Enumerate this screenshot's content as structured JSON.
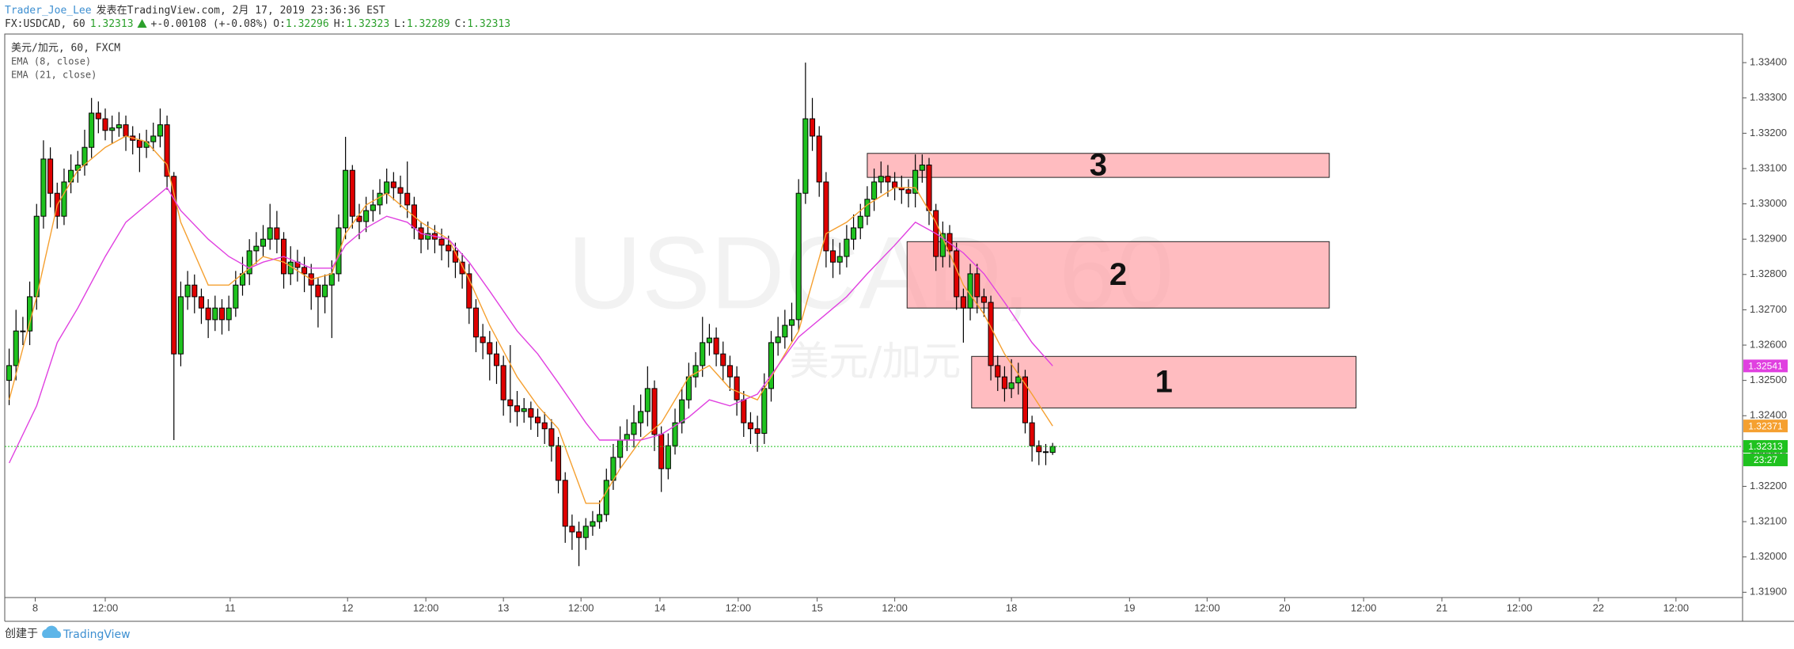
{
  "header": {
    "author": "Trader_Joe_Lee",
    "published": "发表在TradingView.com, 2月 17, 2019 23:36:36 EST",
    "symbol": "FX:USDCAD, 60",
    "change": "+-0.00108 (+-0.08%)",
    "ohlc_labels": [
      "O:",
      "H:",
      "L:",
      "C:"
    ]
  },
  "chart_data": {
    "type": "candlestick",
    "title": "美元/加元, 60, FXCM",
    "watermark": "USDCAD, 60",
    "watermark_sub": "美元/加元",
    "up_color": "#1fc21f",
    "down_color": "#e00000",
    "open": [
      1.325,
      1.32542,
      1.3264,
      1.3264,
      1.32737,
      1.32965,
      1.33127,
      1.3303,
      1.32965,
      1.33062,
      1.33095,
      1.3311,
      1.3316,
      1.33257,
      1.33241,
      1.33208,
      1.33215,
      1.33224,
      1.33192,
      1.3318,
      1.3316,
      1.33176,
      1.33192,
      1.33224,
      1.33078,
      1.32575,
      1.32737,
      1.3277,
      1.32737,
      1.32705,
      1.32672,
      1.32705,
      1.32672,
      1.32705,
      1.3277,
      1.32802,
      1.32867,
      1.3288,
      1.329,
      1.32932,
      1.329,
      1.32802,
      1.32835,
      1.3282,
      1.32802,
      1.3277,
      1.32737,
      1.3277,
      1.32802,
      1.32932,
      1.33095,
      1.32965,
      1.3295,
      1.32981,
      1.32997,
      1.3303,
      1.33062,
      1.33046,
      1.3303,
      1.32997,
      1.32932,
      1.329,
      1.32916,
      1.329,
      1.32883,
      1.32867,
      1.32835,
      1.32802,
      1.32705,
      1.32623,
      1.32607,
      1.32575,
      1.32542,
      1.32445,
      1.32428,
      1.32412,
      1.3242,
      1.32396,
      1.3238,
      1.32363,
      1.32315,
      1.32217,
      1.32087,
      1.32071,
      1.32055,
      1.32087,
      1.321,
      1.3212,
      1.32217,
      1.32282,
      1.32331,
      1.32347,
      1.3238,
      1.32412,
      1.32477,
      1.32347,
      1.3225,
      1.32315,
      1.3238,
      1.32445,
      1.3251,
      1.32542,
      1.32607,
      1.3262,
      1.32575,
      1.32542,
      1.3251,
      1.32445,
      1.3238,
      1.32363,
      1.3235,
      1.32477,
      1.32607,
      1.32623,
      1.32656,
      1.32672,
      1.3303,
      1.33241,
      1.33192,
      1.33062,
      1.32867,
      1.32835,
      1.32851,
      1.329,
      1.32932,
      1.32965,
      1.33013,
      1.33062,
      1.33078,
      1.33062,
      1.33046,
      1.3304,
      1.3303,
      1.33095,
      1.3311,
      1.32981,
      1.32851,
      1.32916,
      1.32867,
      1.32737,
      1.32705,
      1.32802,
      1.32737,
      1.32721,
      1.32542,
      1.3251,
      1.32477,
      1.32493,
      1.3251,
      1.3238,
      1.32315,
      1.32298,
      1.32296
    ],
    "high": [
      1.3259,
      1.327,
      1.3268,
      1.3278,
      1.33,
      1.3318,
      1.3316,
      1.3306,
      1.331,
      1.3314,
      1.3315,
      1.3321,
      1.333,
      1.3329,
      1.3327,
      1.3325,
      1.3326,
      1.3325,
      1.3322,
      1.332,
      1.3321,
      1.3323,
      1.3327,
      1.3325,
      1.3309,
      1.3278,
      1.3281,
      1.328,
      1.3276,
      1.3273,
      1.3274,
      1.3273,
      1.3274,
      1.3281,
      1.3285,
      1.329,
      1.3292,
      1.3294,
      1.33,
      1.3298,
      1.3292,
      1.3288,
      1.3287,
      1.3285,
      1.3283,
      1.3279,
      1.328,
      1.3284,
      1.3297,
      1.3319,
      1.3311,
      1.33,
      1.3302,
      1.3304,
      1.3307,
      1.331,
      1.3309,
      1.3308,
      1.3312,
      1.3302,
      1.3295,
      1.3295,
      1.3294,
      1.3293,
      1.3291,
      1.3289,
      1.3286,
      1.3283,
      1.3273,
      1.3266,
      1.3264,
      1.3261,
      1.3257,
      1.326,
      1.3247,
      1.3245,
      1.3244,
      1.3242,
      1.3241,
      1.3239,
      1.3234,
      1.3224,
      1.3212,
      1.321,
      1.3211,
      1.3213,
      1.3216,
      1.3225,
      1.3232,
      1.3237,
      1.3239,
      1.3243,
      1.3246,
      1.3254,
      1.325,
      1.3237,
      1.3235,
      1.3242,
      1.3248,
      1.3255,
      1.3258,
      1.3268,
      1.3266,
      1.3265,
      1.3261,
      1.3257,
      1.3254,
      1.3247,
      1.3241,
      1.324,
      1.3252,
      1.3264,
      1.3268,
      1.327,
      1.3272,
      1.3307,
      1.334,
      1.333,
      1.3322,
      1.3309,
      1.329,
      1.3289,
      1.3294,
      1.3297,
      1.33,
      1.3305,
      1.331,
      1.3312,
      1.3311,
      1.3309,
      1.3308,
      1.3307,
      1.3314,
      1.3314,
      1.3313,
      1.33,
      1.3295,
      1.3294,
      1.3289,
      1.3276,
      1.3283,
      1.3283,
      1.3276,
      1.3274,
      1.3257,
      1.3254,
      1.3256,
      1.3255,
      1.3253,
      1.324,
      1.3233,
      1.3232,
      1.32323
    ],
    "low": [
      1.3243,
      1.325,
      1.326,
      1.326,
      1.327,
      1.3293,
      1.3299,
      1.3293,
      1.3294,
      1.3303,
      1.3306,
      1.3308,
      1.3313,
      1.332,
      1.3318,
      1.3317,
      1.3319,
      1.3315,
      1.3314,
      1.3309,
      1.3313,
      1.3315,
      1.3316,
      1.3304,
      1.32331,
      1.3254,
      1.327,
      1.3269,
      1.3266,
      1.3262,
      1.3264,
      1.3263,
      1.3264,
      1.3268,
      1.3274,
      1.3277,
      1.3283,
      1.3285,
      1.3287,
      1.3286,
      1.3276,
      1.3277,
      1.3278,
      1.3275,
      1.327,
      1.3265,
      1.3269,
      1.3262,
      1.3278,
      1.329,
      1.3293,
      1.329,
      1.3292,
      1.3295,
      1.3297,
      1.33,
      1.3301,
      1.3299,
      1.3296,
      1.329,
      1.3286,
      1.3287,
      1.3286,
      1.3284,
      1.3282,
      1.3279,
      1.3276,
      1.3266,
      1.3258,
      1.3256,
      1.325,
      1.3249,
      1.324,
      1.3238,
      1.3237,
      1.3238,
      1.3236,
      1.3234,
      1.3232,
      1.3227,
      1.3218,
      1.3204,
      1.3202,
      1.31974,
      1.3202,
      1.3206,
      1.3208,
      1.321,
      1.3219,
      1.3225,
      1.323,
      1.3231,
      1.3234,
      1.3237,
      1.323,
      1.32184,
      1.3222,
      1.3229,
      1.3235,
      1.3242,
      1.3248,
      1.3251,
      1.3257,
      1.3254,
      1.325,
      1.3247,
      1.324,
      1.3234,
      1.3232,
      1.32298,
      1.3232,
      1.3244,
      1.3257,
      1.3259,
      1.3261,
      1.3264,
      1.33,
      1.3315,
      1.3302,
      1.3282,
      1.3279,
      1.328,
      1.3282,
      1.3287,
      1.329,
      1.3294,
      1.3298,
      1.3303,
      1.3302,
      1.3301,
      1.33,
      1.3299,
      1.3299,
      1.3306,
      1.3294,
      1.3281,
      1.3282,
      1.3282,
      1.327,
      1.32607,
      1.3267,
      1.3269,
      1.3268,
      1.325,
      1.3247,
      1.3244,
      1.3245,
      1.3246,
      1.3235,
      1.3227,
      1.3226,
      1.3226,
      1.32289
    ],
    "close": [
      1.32542,
      1.3264,
      1.3264,
      1.32737,
      1.32965,
      1.33127,
      1.3303,
      1.32965,
      1.33062,
      1.33095,
      1.3311,
      1.3316,
      1.33257,
      1.33241,
      1.33208,
      1.33215,
      1.33224,
      1.33192,
      1.3318,
      1.3316,
      1.33176,
      1.33192,
      1.33224,
      1.33078,
      1.32575,
      1.32737,
      1.3277,
      1.32737,
      1.32705,
      1.32672,
      1.32705,
      1.32672,
      1.32705,
      1.3277,
      1.32802,
      1.32867,
      1.3288,
      1.329,
      1.32932,
      1.329,
      1.32802,
      1.32835,
      1.3282,
      1.32802,
      1.3277,
      1.32737,
      1.3277,
      1.32802,
      1.32932,
      1.33095,
      1.32965,
      1.3295,
      1.32981,
      1.32997,
      1.3303,
      1.33062,
      1.33046,
      1.3303,
      1.32997,
      1.32932,
      1.329,
      1.32916,
      1.329,
      1.32883,
      1.32867,
      1.32835,
      1.32802,
      1.32705,
      1.32623,
      1.32607,
      1.32575,
      1.32542,
      1.32445,
      1.32428,
      1.32412,
      1.3242,
      1.32396,
      1.3238,
      1.32363,
      1.32315,
      1.32217,
      1.32087,
      1.32071,
      1.32055,
      1.32087,
      1.321,
      1.3212,
      1.32217,
      1.32282,
      1.32331,
      1.32347,
      1.3238,
      1.32412,
      1.32477,
      1.32347,
      1.3225,
      1.32315,
      1.3238,
      1.32445,
      1.3251,
      1.32542,
      1.32607,
      1.3262,
      1.32575,
      1.32542,
      1.3251,
      1.32445,
      1.3238,
      1.32363,
      1.3235,
      1.32477,
      1.32607,
      1.32623,
      1.32656,
      1.32672,
      1.3303,
      1.33241,
      1.33192,
      1.33062,
      1.32867,
      1.32835,
      1.32851,
      1.329,
      1.32932,
      1.32965,
      1.33013,
      1.33062,
      1.33078,
      1.33062,
      1.33046,
      1.3304,
      1.3303,
      1.33095,
      1.3311,
      1.32981,
      1.32851,
      1.32916,
      1.32867,
      1.32737,
      1.32705,
      1.32802,
      1.32737,
      1.32721,
      1.32542,
      1.3251,
      1.32477,
      1.32493,
      1.3251,
      1.3238,
      1.32315,
      1.32298,
      1.32296,
      1.32313
    ],
    "series": [
      {
        "name": "EMA (8, close)",
        "color": "#f5a030",
        "x": [
          0,
          4,
          7,
          10,
          14,
          17,
          20,
          23,
          25,
          29,
          32,
          35,
          37,
          40,
          44,
          47,
          49,
          52,
          55,
          58,
          60,
          64,
          67,
          70,
          74,
          77,
          80,
          84,
          86,
          89,
          92,
          95,
          99,
          102,
          105,
          109,
          112,
          115,
          119,
          122,
          125,
          129,
          132,
          135,
          139,
          142,
          145,
          149,
          152
        ],
        "values": [
          1.32445,
          1.32737,
          1.32997,
          1.33095,
          1.3316,
          1.33192,
          1.33176,
          1.33111,
          1.32948,
          1.3277,
          1.3277,
          1.32818,
          1.32851,
          1.32835,
          1.32786,
          1.32802,
          1.32916,
          1.32997,
          1.3303,
          1.32981,
          1.32948,
          1.329,
          1.32786,
          1.32656,
          1.3251,
          1.32428,
          1.32363,
          1.32152,
          1.32152,
          1.3225,
          1.32331,
          1.3238,
          1.3251,
          1.32542,
          1.32477,
          1.32445,
          1.32542,
          1.3264,
          1.32916,
          1.32948,
          1.32997,
          1.33046,
          1.33046,
          1.32948,
          1.3277,
          1.32688,
          1.32575,
          1.32461,
          1.32371
        ]
      },
      {
        "name": "EMA (21, close)",
        "color": "#e040e0",
        "x": [
          0,
          4,
          7,
          10,
          14,
          17,
          20,
          23,
          25,
          29,
          32,
          35,
          37,
          40,
          44,
          47,
          49,
          52,
          55,
          58,
          60,
          64,
          67,
          70,
          74,
          77,
          80,
          84,
          86,
          89,
          92,
          95,
          99,
          102,
          105,
          109,
          112,
          115,
          119,
          122,
          125,
          129,
          132,
          135,
          139,
          142,
          145,
          149,
          152
        ],
        "values": [
          1.32266,
          1.32428,
          1.32607,
          1.32705,
          1.32851,
          1.32948,
          1.32997,
          1.33046,
          1.32981,
          1.329,
          1.32851,
          1.32818,
          1.32835,
          1.32851,
          1.32818,
          1.32818,
          1.32883,
          1.32932,
          1.32965,
          1.32948,
          1.32916,
          1.329,
          1.32835,
          1.32753,
          1.3264,
          1.32575,
          1.32493,
          1.3238,
          1.32331,
          1.32331,
          1.32331,
          1.32347,
          1.32396,
          1.32445,
          1.32428,
          1.32461,
          1.32542,
          1.32623,
          1.32688,
          1.32737,
          1.32802,
          1.32883,
          1.32948,
          1.32916,
          1.32861,
          1.32802,
          1.32721,
          1.32607,
          1.32541
        ]
      }
    ],
    "last_price_color": "#1fc21f",
    "countdown": "23:27",
    "zones": [
      {
        "label": "3",
        "x": [
          125,
          192.3
        ],
        "y": [
          1.33075,
          1.33143
        ]
      },
      {
        "label": "2",
        "x": [
          130.8,
          192.3
        ],
        "y": [
          1.32705,
          1.32893
        ]
      },
      {
        "label": "1",
        "x": [
          140.2,
          196.2
        ],
        "y": [
          1.32422,
          1.32568
        ]
      }
    ],
    "xlim": [
      -0.64,
      252.5
    ],
    "ylim": [
      1.31885,
      1.33481
    ],
    "xticks": [
      {
        "value": 3.8,
        "label": "8"
      },
      {
        "value": 14,
        "label": "12:00"
      },
      {
        "value": 32.2,
        "label": "11"
      },
      {
        "value": 49.3,
        "label": "12"
      },
      {
        "value": 60.7,
        "label": "12:00"
      },
      {
        "value": 72,
        "label": "13"
      },
      {
        "value": 83.3,
        "label": "12:00"
      },
      {
        "value": 94.8,
        "label": "14"
      },
      {
        "value": 106.2,
        "label": "12:00"
      },
      {
        "value": 117.7,
        "label": "15"
      },
      {
        "value": 129,
        "label": "12:00"
      },
      {
        "value": 146,
        "label": "18"
      },
      {
        "value": 163.2,
        "label": "19"
      },
      {
        "value": 174.5,
        "label": "12:00"
      },
      {
        "value": 185.8,
        "label": "20"
      },
      {
        "value": 197.3,
        "label": "12:00"
      },
      {
        "value": 208.7,
        "label": "21"
      },
      {
        "value": 220,
        "label": "12:00"
      },
      {
        "value": 231.5,
        "label": "22"
      },
      {
        "value": 242.8,
        "label": "12:00"
      }
    ],
    "yticks": [
      {
        "value": 1.319,
        "label": "1.31900"
      },
      {
        "value": 1.32,
        "label": "1.32000"
      },
      {
        "value": 1.321,
        "label": "1.32100"
      },
      {
        "value": 1.322,
        "label": "1.32200"
      },
      {
        "value": 1.323,
        "label": "1.32300"
      },
      {
        "value": 1.324,
        "label": "1.32400"
      },
      {
        "value": 1.325,
        "label": "1.32500"
      },
      {
        "value": 1.326,
        "label": "1.32600"
      },
      {
        "value": 1.327,
        "label": "1.32700"
      },
      {
        "value": 1.328,
        "label": "1.32800"
      },
      {
        "value": 1.329,
        "label": "1.32900"
      },
      {
        "value": 1.33,
        "label": "1.33000"
      },
      {
        "value": 1.331,
        "label": "1.33100"
      },
      {
        "value": 1.332,
        "label": "1.33200"
      },
      {
        "value": 1.333,
        "label": "1.33300"
      },
      {
        "value": 1.334,
        "label": "1.33400"
      }
    ]
  },
  "footer": {
    "text": "创建于",
    "brand": "TradingView"
  }
}
